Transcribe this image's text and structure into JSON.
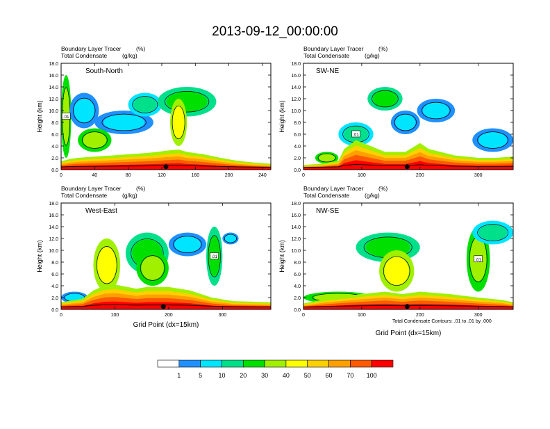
{
  "title": "2013-09-12_00:00:00",
  "field_labels": [
    "Boundary Layer Tracer",
    "(%)",
    "Total Condensate",
    "(g/kg)"
  ],
  "x_axis_label": "Grid Point (dx=15km)",
  "y_axis_label": "Height (km)",
  "contour_note": "Total Condensate Contours: .01 to .01 by .000",
  "contour_label": ".01",
  "colorbar": {
    "levels": [
      1,
      5,
      10,
      20,
      30,
      40,
      50,
      60,
      70,
      100
    ],
    "level_labels": [
      "1",
      "5",
      "10",
      "20",
      "30",
      "40",
      "50",
      "60",
      "70",
      "100"
    ],
    "colors": [
      "#ffffff",
      "#1e90ff",
      "#00e5ff",
      "#00e08a",
      "#00e000",
      "#a0f000",
      "#ffff00",
      "#ffd000",
      "#ffa000",
      "#ff5a00",
      "#ff0000"
    ]
  },
  "chart_data": [
    {
      "type": "heatmap",
      "panel_label": "South-North",
      "x_range": [
        0,
        250
      ],
      "x_ticks": [
        0,
        40,
        80,
        120,
        160,
        200,
        240
      ],
      "y_range": [
        0,
        18
      ],
      "y_ticks": [
        "0.0",
        "2.0",
        "4.0",
        "6.0",
        "8.0",
        "10.0",
        "12.0",
        "14.0",
        "16.0",
        "18.0"
      ],
      "marker_x": 125,
      "boundary_layer_top": [
        [
          0,
          1.4
        ],
        [
          10,
          1.8
        ],
        [
          20,
          2.0
        ],
        [
          40,
          2.2
        ],
        [
          60,
          2.4
        ],
        [
          80,
          2.6
        ],
        [
          100,
          2.8
        ],
        [
          115,
          3.0
        ],
        [
          125,
          3.2
        ],
        [
          140,
          3.4
        ],
        [
          150,
          3.0
        ],
        [
          170,
          2.6
        ],
        [
          190,
          2.0
        ],
        [
          210,
          1.5
        ],
        [
          230,
          1.2
        ],
        [
          250,
          1.0
        ]
      ],
      "tracer_features": [
        {
          "x": [
            0,
            12
          ],
          "y": [
            2,
            16
          ],
          "level": 30
        },
        {
          "x": [
            10,
            45
          ],
          "y": [
            7,
            13
          ],
          "level": 5
        },
        {
          "x": [
            40,
            110
          ],
          "y": [
            6,
            10
          ],
          "level": 5
        },
        {
          "x": [
            80,
            120
          ],
          "y": [
            9,
            13
          ],
          "level": 10
        },
        {
          "x": [
            115,
            185
          ],
          "y": [
            9,
            14
          ],
          "level": 20
        },
        {
          "x": [
            130,
            150
          ],
          "y": [
            4,
            12
          ],
          "level": 40
        },
        {
          "x": [
            20,
            60
          ],
          "y": [
            3,
            7
          ],
          "level": 30
        }
      ]
    },
    {
      "type": "heatmap",
      "panel_label": "SW-NE",
      "x_range": [
        0,
        360
      ],
      "x_ticks": [
        0,
        100,
        200,
        300
      ],
      "y_range": [
        0,
        18
      ],
      "y_ticks": [
        "0.0",
        "2.0",
        "4.0",
        "6.0",
        "8.0",
        "10.0",
        "12.0",
        "14.0",
        "16.0",
        "18.0"
      ],
      "marker_x": 178,
      "boundary_layer_top": [
        [
          0,
          0.8
        ],
        [
          30,
          1.0
        ],
        [
          60,
          1.5
        ],
        [
          70,
          3.5
        ],
        [
          90,
          5.0
        ],
        [
          110,
          4.2
        ],
        [
          140,
          3.0
        ],
        [
          175,
          3.0
        ],
        [
          200,
          4.5
        ],
        [
          215,
          3.5
        ],
        [
          260,
          2.4
        ],
        [
          300,
          2.0
        ],
        [
          330,
          2.0
        ],
        [
          360,
          2.2
        ]
      ],
      "tracer_features": [
        {
          "x": [
            60,
            120
          ],
          "y": [
            4,
            8
          ],
          "level": 10
        },
        {
          "x": [
            110,
            170
          ],
          "y": [
            10,
            14
          ],
          "level": 20
        },
        {
          "x": [
            150,
            200
          ],
          "y": [
            6,
            10
          ],
          "level": 5
        },
        {
          "x": [
            195,
            260
          ],
          "y": [
            8,
            12
          ],
          "level": 5
        },
        {
          "x": [
            290,
            360
          ],
          "y": [
            3,
            7
          ],
          "level": 5
        },
        {
          "x": [
            20,
            60
          ],
          "y": [
            1,
            3
          ],
          "level": 30
        }
      ]
    },
    {
      "type": "heatmap",
      "panel_label": "West-East",
      "x_range": [
        0,
        390
      ],
      "x_ticks": [
        0,
        100,
        200,
        300
      ],
      "y_range": [
        0,
        18
      ],
      "y_ticks": [
        "0.0",
        "2.0",
        "4.0",
        "6.0",
        "8.0",
        "10.0",
        "12.0",
        "14.0",
        "16.0",
        "18.0"
      ],
      "marker_x": 190,
      "boundary_layer_top": [
        [
          0,
          1.2
        ],
        [
          40,
          1.8
        ],
        [
          60,
          3.2
        ],
        [
          80,
          4.0
        ],
        [
          100,
          4.2
        ],
        [
          140,
          3.5
        ],
        [
          160,
          3.8
        ],
        [
          200,
          3.8
        ],
        [
          240,
          3.2
        ],
        [
          280,
          2.0
        ],
        [
          320,
          1.4
        ],
        [
          360,
          1.3
        ],
        [
          390,
          1.2
        ]
      ],
      "tracer_features": [
        {
          "x": [
            60,
            110
          ],
          "y": [
            3,
            12
          ],
          "level": 40
        },
        {
          "x": [
            120,
            200
          ],
          "y": [
            6,
            13
          ],
          "level": 20
        },
        {
          "x": [
            140,
            200
          ],
          "y": [
            4,
            10
          ],
          "level": 30
        },
        {
          "x": [
            200,
            270
          ],
          "y": [
            9,
            13
          ],
          "level": 5
        },
        {
          "x": [
            270,
            300
          ],
          "y": [
            4,
            14
          ],
          "level": 20
        },
        {
          "x": [
            300,
            330
          ],
          "y": [
            11,
            13
          ],
          "level": 5
        },
        {
          "x": [
            0,
            50
          ],
          "y": [
            1,
            3
          ],
          "level": 5
        }
      ]
    },
    {
      "type": "heatmap",
      "panel_label": "NW-SE",
      "x_range": [
        0,
        360
      ],
      "x_ticks": [
        0,
        100,
        200,
        300
      ],
      "y_range": [
        0,
        18
      ],
      "y_ticks": [
        "0.0",
        "2.0",
        "4.0",
        "6.0",
        "8.0",
        "10.0",
        "12.0",
        "14.0",
        "16.0",
        "18.0"
      ],
      "marker_x": 178,
      "boundary_layer_top": [
        [
          0,
          1.0
        ],
        [
          40,
          1.8
        ],
        [
          100,
          2.6
        ],
        [
          140,
          3.0
        ],
        [
          170,
          2.6
        ],
        [
          200,
          3.0
        ],
        [
          250,
          2.6
        ],
        [
          300,
          2.0
        ],
        [
          340,
          1.6
        ],
        [
          360,
          1.2
        ]
      ],
      "tracer_features": [
        {
          "x": [
            90,
            200
          ],
          "y": [
            8,
            13
          ],
          "level": 20
        },
        {
          "x": [
            130,
            190
          ],
          "y": [
            3,
            10
          ],
          "level": 40
        },
        {
          "x": [
            280,
            320
          ],
          "y": [
            3,
            14
          ],
          "level": 30
        },
        {
          "x": [
            290,
            360
          ],
          "y": [
            11,
            15
          ],
          "level": 10
        },
        {
          "x": [
            0,
            120
          ],
          "y": [
            1,
            3
          ],
          "level": 30
        }
      ]
    }
  ]
}
